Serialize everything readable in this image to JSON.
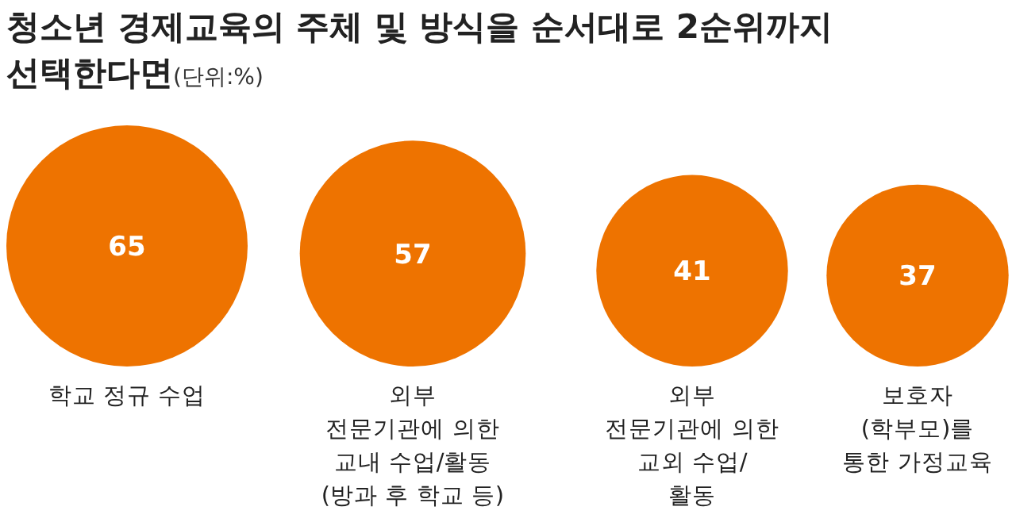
{
  "chart_data": {
    "type": "other",
    "title": "청소년 경제교육의 주체 및 방식을 순서대로 2순위까지 선택한다면",
    "subtitle": "(단위:%)",
    "categories": [
      "학교 정규 수업",
      "외부\n전문기관에 의한\n교내 수업/활동\n(방과 후 학교 등)",
      "외부\n전문기관에 의한\n교외 수업/\n활동",
      "보호자\n(학부모)를\n통한 가정교육"
    ],
    "values": [
      65,
      57,
      41,
      37
    ],
    "color": "#ee7300",
    "data_labels": true
  }
}
